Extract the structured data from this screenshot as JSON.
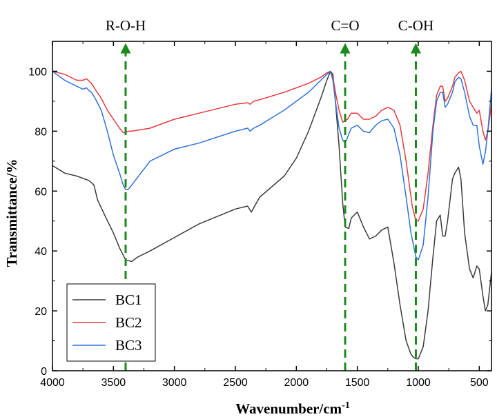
{
  "chart_data": {
    "type": "line",
    "title": "",
    "xlabel": "Wavenumber/cm",
    "xlabel_sup": "-1",
    "ylabel": "Transmittance/%",
    "xlim": [
      4000,
      400
    ],
    "ylim": [
      0,
      110
    ],
    "x_reversed": true,
    "grid": false,
    "legend_position": "bottom-left",
    "x_ticks": [
      4000,
      3500,
      3000,
      2500,
      2000,
      1500,
      1000,
      500
    ],
    "y_ticks": [
      0,
      20,
      40,
      60,
      80,
      100
    ],
    "annotations": [
      {
        "label": "R-O-H",
        "x": 3400,
        "style": "dashed-arrow",
        "color": "#1a8a1a"
      },
      {
        "label": "C=O",
        "x": 1600,
        "style": "dashed-arrow",
        "color": "#1a8a1a"
      },
      {
        "label": "C-OH",
        "x": 1020,
        "style": "dashed-arrow",
        "color": "#1a8a1a"
      }
    ],
    "series": [
      {
        "name": "BC1",
        "color": "#3a3a3a",
        "x": [
          4000,
          3900,
          3800,
          3700,
          3660,
          3630,
          3560,
          3500,
          3450,
          3400,
          3350,
          3300,
          3200,
          3000,
          2800,
          2500,
          2400,
          2370,
          2300,
          2100,
          2000,
          1900,
          1800,
          1750,
          1720,
          1700,
          1680,
          1650,
          1620,
          1600,
          1570,
          1550,
          1500,
          1450,
          1400,
          1350,
          1300,
          1250,
          1200,
          1150,
          1100,
          1060,
          1040,
          1020,
          1000,
          960,
          920,
          880,
          850,
          820,
          800,
          780,
          760,
          720,
          700,
          670,
          650,
          620,
          580,
          550,
          520,
          500,
          470,
          450,
          430,
          400
        ],
        "y": [
          68.5,
          66,
          65,
          63.5,
          62,
          57,
          51,
          46,
          41,
          37,
          36.5,
          38,
          40,
          44.5,
          49,
          54,
          55,
          53,
          58,
          65,
          71,
          80,
          91,
          97,
          100,
          99,
          90,
          75,
          56,
          48,
          47.5,
          51,
          53,
          48,
          44,
          45,
          47,
          48,
          36,
          22,
          10,
          5.5,
          4.5,
          4,
          4,
          8,
          20,
          38,
          50,
          52,
          45,
          45,
          50,
          64,
          66,
          68,
          64,
          46,
          34,
          31,
          35,
          34,
          25,
          20,
          22,
          33
        ]
      },
      {
        "name": "BC2",
        "color": "#e8383d",
        "x": [
          4000,
          3900,
          3800,
          3750,
          3720,
          3680,
          3650,
          3600,
          3550,
          3500,
          3450,
          3420,
          3400,
          3380,
          3350,
          3200,
          3000,
          2800,
          2500,
          2400,
          2380,
          2350,
          2300,
          2100,
          2000,
          1900,
          1800,
          1750,
          1720,
          1700,
          1680,
          1650,
          1620,
          1600,
          1580,
          1550,
          1500,
          1450,
          1400,
          1350,
          1300,
          1250,
          1200,
          1150,
          1100,
          1050,
          1020,
          1000,
          960,
          920,
          880,
          850,
          820,
          800,
          780,
          760,
          720,
          700,
          670,
          650,
          620,
          580,
          550,
          520,
          500,
          470,
          450,
          430,
          400
        ],
        "y": [
          100,
          99,
          97,
          97,
          97.5,
          96,
          94,
          91,
          87,
          84,
          81,
          79.5,
          79.5,
          80,
          80,
          81,
          84,
          86,
          89,
          89.5,
          89,
          90,
          90.5,
          93,
          94.5,
          96,
          98,
          99.5,
          100,
          98,
          93,
          87,
          83,
          83.5,
          84,
          86,
          86,
          84,
          84,
          85,
          87,
          88,
          87,
          82,
          70,
          55,
          50,
          50,
          54,
          66,
          82,
          92,
          95,
          95,
          90,
          91,
          95,
          98,
          99.5,
          100,
          97,
          90,
          88,
          86,
          87,
          80,
          77,
          80,
          89
        ]
      },
      {
        "name": "BC3",
        "color": "#2f72d8",
        "x": [
          4000,
          3900,
          3800,
          3750,
          3720,
          3700,
          3680,
          3650,
          3600,
          3550,
          3500,
          3450,
          3420,
          3400,
          3380,
          3350,
          3200,
          3000,
          2800,
          2500,
          2400,
          2380,
          2350,
          2300,
          2100,
          2000,
          1900,
          1800,
          1750,
          1720,
          1700,
          1680,
          1650,
          1620,
          1600,
          1580,
          1550,
          1500,
          1450,
          1400,
          1350,
          1300,
          1250,
          1200,
          1150,
          1100,
          1060,
          1040,
          1020,
          1000,
          960,
          920,
          880,
          850,
          820,
          800,
          780,
          760,
          720,
          700,
          670,
          650,
          620,
          580,
          550,
          520,
          500,
          470,
          450,
          430,
          400
        ],
        "y": [
          100,
          97,
          95,
          94,
          94.5,
          93.5,
          93,
          91,
          87,
          80,
          72,
          66,
          62,
          60.5,
          60.5,
          62,
          70,
          74,
          76,
          80,
          81,
          80,
          81,
          82,
          87,
          90,
          93,
          97,
          99,
          100,
          97,
          90,
          81,
          77,
          76,
          78,
          81,
          82,
          80,
          79.5,
          82,
          83.5,
          84,
          81,
          72,
          58,
          46,
          42,
          38,
          37,
          42,
          58,
          80,
          90,
          93,
          93,
          88,
          89,
          93,
          96.5,
          98,
          97.5,
          93,
          85,
          82,
          82,
          75,
          69,
          73,
          80,
          94
        ]
      }
    ]
  }
}
